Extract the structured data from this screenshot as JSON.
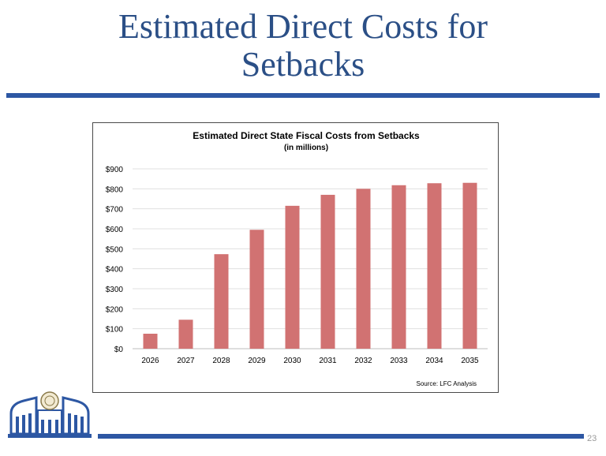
{
  "slide": {
    "title_line1": "Estimated Direct Costs for",
    "title_line2": "Setbacks",
    "page_number": "23",
    "accent_color": "#2d57a3",
    "title_color": "#2b4f86"
  },
  "logo": {
    "icon": "capitol-building-seal-icon"
  },
  "chart_data": {
    "type": "bar",
    "title": "Estimated Direct State Fiscal Costs from Setbacks",
    "subtitle": "(in millions)",
    "source": "Source: LFC Analysis",
    "categories": [
      "2026",
      "2027",
      "2028",
      "2029",
      "2030",
      "2031",
      "2032",
      "2033",
      "2034",
      "2035"
    ],
    "values": [
      75,
      145,
      473,
      595,
      715,
      770,
      800,
      818,
      828,
      830
    ],
    "ylim": [
      0,
      900
    ],
    "yticks": [
      0,
      100,
      200,
      300,
      400,
      500,
      600,
      700,
      800,
      900
    ],
    "ytick_labels": [
      "$0",
      "$100",
      "$200",
      "$300",
      "$400",
      "$500",
      "$600",
      "$700",
      "$800",
      "$900"
    ],
    "xlabel": "",
    "ylabel": "",
    "grid": true,
    "bar_color": "#d17272"
  }
}
